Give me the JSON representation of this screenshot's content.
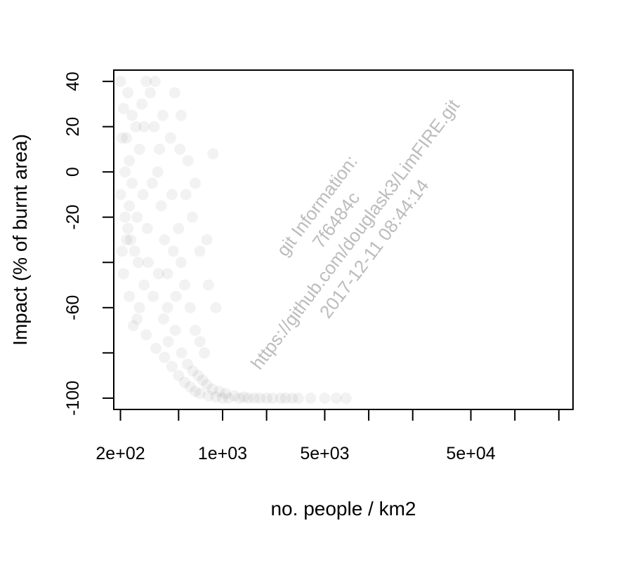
{
  "chart_data": {
    "type": "scatter",
    "title": "",
    "xlabel": "no. people / km2",
    "ylabel": "Impact (% of burnt area)",
    "x_scale": "log10",
    "xlim": [
      180,
      250000
    ],
    "ylim": [
      -105,
      45
    ],
    "grid": false,
    "legend": "none",
    "point_color": "#000000",
    "point_opacity": 0.05,
    "x_ticks": [
      {
        "value": 200,
        "label": "2e+02"
      },
      {
        "value": 500,
        "label": ""
      },
      {
        "value": 1000,
        "label": "1e+03"
      },
      {
        "value": 2000,
        "label": ""
      },
      {
        "value": 5000,
        "label": "5e+03"
      },
      {
        "value": 10000,
        "label": ""
      },
      {
        "value": 20000,
        "label": ""
      },
      {
        "value": 50000,
        "label": "5e+04"
      },
      {
        "value": 100000,
        "label": ""
      },
      {
        "value": 200000,
        "label": ""
      }
    ],
    "y_ticks": [
      {
        "value": 40,
        "label": "40"
      },
      {
        "value": 20,
        "label": "20"
      },
      {
        "value": 0,
        "label": "0"
      },
      {
        "value": -20,
        "label": "-20"
      },
      {
        "value": -40,
        "label": ""
      },
      {
        "value": -60,
        "label": "-60"
      },
      {
        "value": -80,
        "label": ""
      },
      {
        "value": -100,
        "label": "-100"
      }
    ],
    "points": [
      [
        200,
        40
      ],
      [
        210,
        28
      ],
      [
        220,
        15
      ],
      [
        230,
        5
      ],
      [
        240,
        -5
      ],
      [
        200,
        -10
      ],
      [
        215,
        -20
      ],
      [
        225,
        -25
      ],
      [
        235,
        -30
      ],
      [
        250,
        -35
      ],
      [
        260,
        -20
      ],
      [
        270,
        10
      ],
      [
        280,
        30
      ],
      [
        300,
        40
      ],
      [
        320,
        35
      ],
      [
        340,
        20
      ],
      [
        360,
        0
      ],
      [
        380,
        -15
      ],
      [
        400,
        -30
      ],
      [
        420,
        -45
      ],
      [
        210,
        -45
      ],
      [
        230,
        -55
      ],
      [
        260,
        -65
      ],
      [
        300,
        -72
      ],
      [
        350,
        -78
      ],
      [
        400,
        -82
      ],
      [
        450,
        -86
      ],
      [
        500,
        -90
      ],
      [
        550,
        -93
      ],
      [
        600,
        -95
      ],
      [
        650,
        -97
      ],
      [
        700,
        -98
      ],
      [
        800,
        -99
      ],
      [
        900,
        -99.5
      ],
      [
        1000,
        -100
      ],
      [
        1100,
        -100
      ],
      [
        1300,
        -100
      ],
      [
        1500,
        -100
      ],
      [
        1800,
        -100
      ],
      [
        2200,
        -100
      ],
      [
        2700,
        -100
      ],
      [
        3300,
        -100
      ],
      [
        4000,
        -100
      ],
      [
        5000,
        -100
      ],
      [
        6000,
        -100
      ],
      [
        7000,
        -100
      ],
      [
        450,
        -10
      ],
      [
        500,
        -25
      ],
      [
        520,
        -40
      ],
      [
        480,
        -55
      ],
      [
        420,
        -60
      ],
      [
        550,
        -50
      ],
      [
        600,
        -60
      ],
      [
        650,
        -70
      ],
      [
        700,
        -75
      ],
      [
        750,
        -80
      ],
      [
        620,
        -20
      ],
      [
        580,
        5
      ],
      [
        520,
        25
      ],
      [
        470,
        35
      ],
      [
        440,
        15
      ],
      [
        390,
        25
      ],
      [
        330,
        -5
      ],
      [
        310,
        -40
      ],
      [
        290,
        -50
      ],
      [
        270,
        -60
      ],
      [
        245,
        -68
      ],
      [
        230,
        -15
      ],
      [
        205,
        15
      ],
      [
        205,
        -35
      ],
      [
        215,
        0
      ],
      [
        225,
        35
      ],
      [
        255,
        20
      ],
      [
        285,
        -10
      ],
      [
        305,
        -25
      ],
      [
        335,
        -55
      ],
      [
        365,
        -45
      ],
      [
        395,
        -65
      ],
      [
        425,
        -75
      ],
      [
        475,
        -70
      ],
      [
        525,
        -80
      ],
      [
        575,
        -85
      ],
      [
        625,
        -88
      ],
      [
        680,
        -90
      ],
      [
        730,
        -92
      ],
      [
        780,
        -94
      ],
      [
        850,
        -96
      ],
      [
        950,
        -97
      ],
      [
        1050,
        -98
      ],
      [
        1200,
        -99
      ],
      [
        1400,
        -99.5
      ],
      [
        1650,
        -100
      ],
      [
        2000,
        -100
      ],
      [
        2500,
        -100
      ],
      [
        3000,
        -100
      ],
      [
        860,
        8
      ],
      [
        700,
        -35
      ],
      [
        650,
        -5
      ],
      [
        800,
        -50
      ],
      [
        900,
        -60
      ],
      [
        780,
        -30
      ],
      [
        560,
        -10
      ],
      [
        510,
        10
      ],
      [
        460,
        -35
      ],
      [
        370,
        10
      ],
      [
        345,
        40
      ],
      [
        290,
        20
      ],
      [
        265,
        -40
      ],
      [
        240,
        25
      ],
      [
        220,
        -30
      ]
    ]
  },
  "watermark": {
    "line1": "git Information:",
    "line2": "7f6484c",
    "line3": "https://github.com/douglask3/LimFIRE.git",
    "line4": "2017-12-11 08:44:14"
  }
}
